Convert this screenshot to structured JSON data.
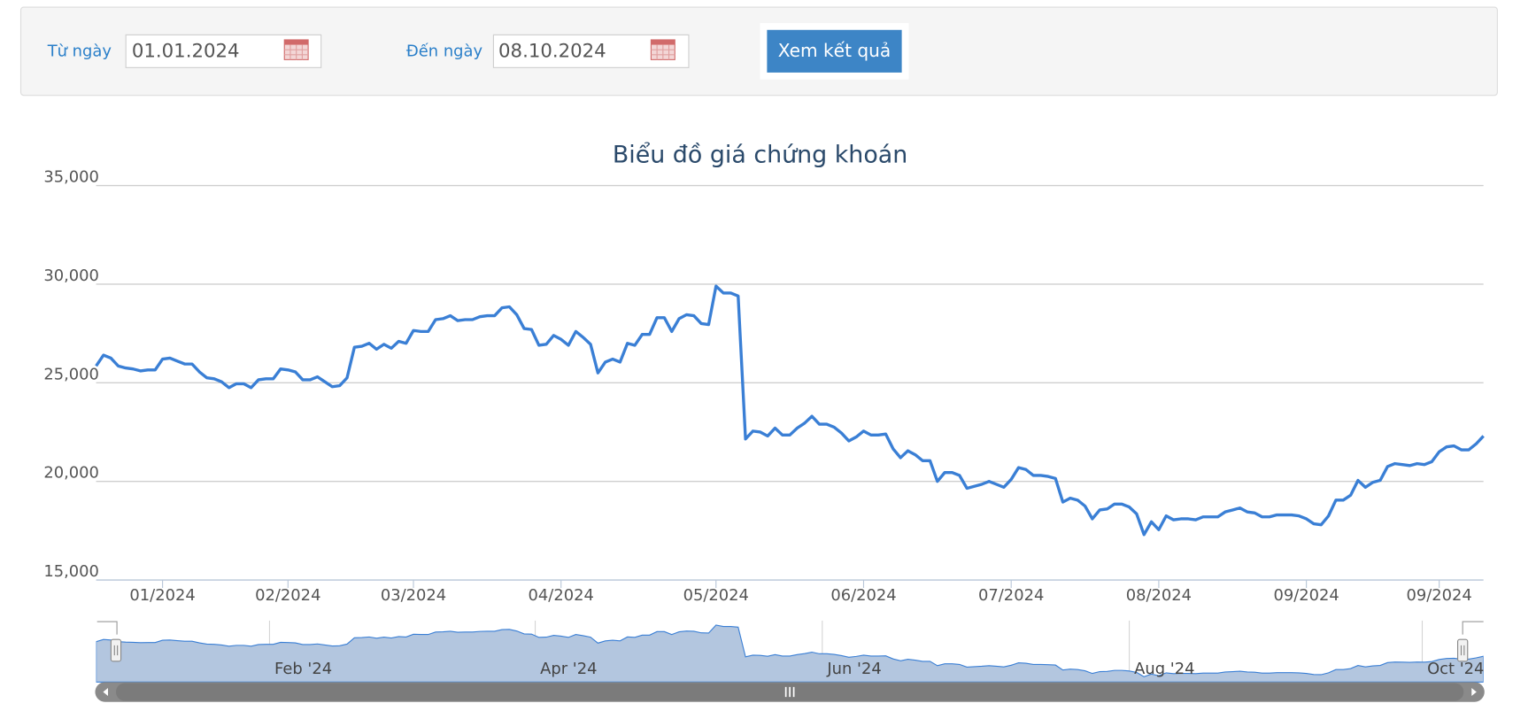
{
  "form": {
    "from_label": "Từ ngày",
    "from_value": "01.01.2024",
    "to_label": "Đến ngày",
    "to_value": "08.10.2024",
    "button": "Xem kết quả"
  },
  "chart_data": {
    "type": "line",
    "title": "Biểu đồ giá chứng khoán",
    "series": [
      {
        "color": "#3a7fd5",
        "values": [
          25850,
          26400,
          26250,
          25850,
          25750,
          25700,
          25600,
          25650,
          25650,
          26200,
          26250,
          26100,
          25950,
          25950,
          25550,
          25250,
          25200,
          25050,
          24750,
          24950,
          24950,
          24750,
          25150,
          25200,
          25200,
          25700,
          25650,
          25550,
          25150,
          25150,
          25300,
          25050,
          24800,
          24850,
          25250,
          26800,
          26850,
          27000,
          26700,
          26950,
          26750,
          27100,
          27000,
          27650,
          27600,
          27600,
          28200,
          28250,
          28400,
          28150,
          28200,
          28200,
          28350,
          28400,
          28400,
          28800,
          28850,
          28450,
          27750,
          27700,
          26900,
          26950,
          27400,
          27200,
          26900,
          27600,
          27300,
          26950,
          25500,
          26050,
          26200,
          26050,
          27000,
          26900,
          27450,
          27450,
          28300,
          28300,
          27600,
          28250,
          28450,
          28400,
          28000,
          27950,
          29900,
          29550,
          29550,
          29400,
          22150,
          22550,
          22500,
          22300,
          22700,
          22350,
          22350,
          22700,
          22950,
          23300,
          22900,
          22900,
          22750,
          22450,
          22050,
          22250,
          22550,
          22350,
          22350,
          22400,
          21650,
          21200,
          21550,
          21350,
          21050,
          21050,
          20000,
          20450,
          20450,
          20300,
          19650,
          19750,
          19850,
          20000,
          19850,
          19700,
          20100,
          20700,
          20600,
          20300,
          20300,
          20250,
          20150,
          18950,
          19150,
          19050,
          18750,
          18100,
          18550,
          18600,
          18850,
          18850,
          18700,
          18350,
          17300,
          17950,
          17550,
          18250,
          18050,
          18100,
          18100,
          18050,
          18200,
          18200,
          18200,
          18450,
          18550,
          18650,
          18450,
          18400,
          18200,
          18200,
          18300,
          18300,
          18300,
          18250,
          18100,
          17850,
          17800,
          18250,
          19050,
          19050,
          19300,
          20050,
          19700,
          19950,
          20050,
          20750,
          20900,
          20850,
          20800,
          20900,
          20850,
          21000,
          21500,
          21750,
          21800,
          21600,
          21600,
          21900,
          22300
        ]
      }
    ],
    "xlim": [
      0,
      188
    ],
    "xticks": [
      {
        "value": 9,
        "label": "01/2024"
      },
      {
        "value": 26,
        "label": "02/2024"
      },
      {
        "value": 43,
        "label": "03/2024"
      },
      {
        "value": 63,
        "label": "04/2024"
      },
      {
        "value": 84,
        "label": "05/2024"
      },
      {
        "value": 104,
        "label": "06/2024"
      },
      {
        "value": 124,
        "label": "07/2024"
      },
      {
        "value": 144,
        "label": "08/2024"
      },
      {
        "value": 164,
        "label": "09/2024"
      },
      {
        "value": 182,
        "label": "09/2024"
      }
    ],
    "ylim": [
      15000,
      35000
    ],
    "yticks": [
      {
        "value": 15000,
        "label": "15,000"
      },
      {
        "value": 20000,
        "label": "20,000"
      },
      {
        "value": 25000,
        "label": "25,000"
      },
      {
        "value": 30000,
        "label": "30,000"
      },
      {
        "value": 35000,
        "label": "35,000"
      }
    ],
    "grid": true,
    "navigator": {
      "ylim": [
        16000,
        30500
      ],
      "color": "#b3c6df",
      "xticks": [
        {
          "value": 23.5,
          "label": "Feb '24"
        },
        {
          "value": 59.5,
          "label": "Apr '24"
        },
        {
          "value": 98.4,
          "label": "Jun '24"
        },
        {
          "value": 140,
          "label": "Aug '24"
        },
        {
          "value": 179.7,
          "label": "Oct '24"
        }
      ]
    }
  }
}
